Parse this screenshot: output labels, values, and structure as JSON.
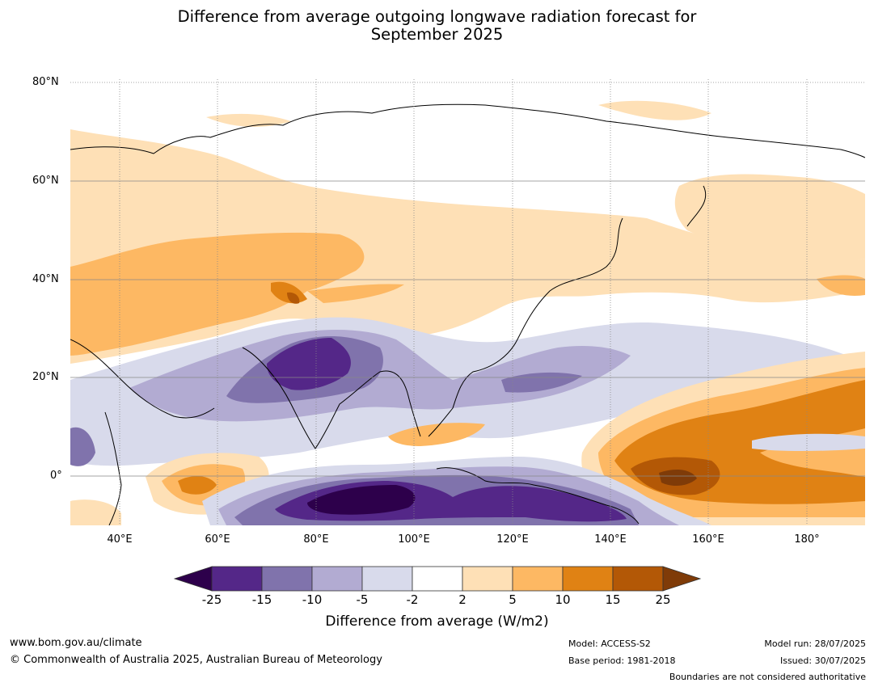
{
  "title_line1": "Difference from average outgoing longwave radiation forecast for",
  "title_line2": "September 2025",
  "lat_labels": [
    "80°N",
    "60°N",
    "40°N",
    "20°N",
    "0°"
  ],
  "lon_labels": [
    "40°E",
    "60°E",
    "80°E",
    "100°E",
    "120°E",
    "140°E",
    "160°E",
    "180°"
  ],
  "colorbar": {
    "ticks": [
      "-25",
      "-15",
      "-10",
      "-5",
      "-2",
      "2",
      "5",
      "10",
      "15",
      "25"
    ],
    "colors": {
      "below_min": "#2d004b",
      "c1": "#542788",
      "c2": "#8073ac",
      "c3": "#b2abd2",
      "c4": "#d8daeb",
      "c5": "#ffffff",
      "c6": "#fee0b6",
      "c7": "#fdb863",
      "c8": "#e08214",
      "c9": "#b35806",
      "above_max": "#7f3b08"
    },
    "title": "Difference from average (W/m2)"
  },
  "footer": {
    "website": "www.bom.gov.au/climate",
    "copyright": "© Commonwealth of Australia 2025, Australian Bureau of Meteorology",
    "model": "Model: ACCESS-S2",
    "base_period": "Base period: 1981-2018",
    "model_run": "Model run: 28/07/2025",
    "issued": "Issued: 30/07/2025",
    "boundaries_note": "Boundaries are not considered authoritative"
  }
}
